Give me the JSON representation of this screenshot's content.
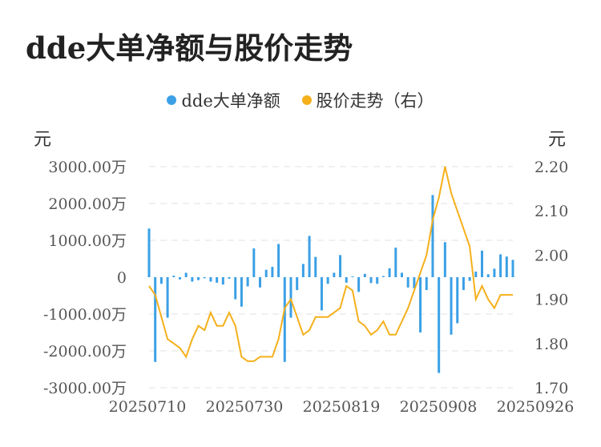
{
  "title": "dde大单净额与股价走势",
  "colors": {
    "bar": "#3ba0e6",
    "line": "#f5b01c",
    "grid": "#e6e6e6"
  },
  "chart_data": {
    "type": "bar+line",
    "legend": [
      "dde大单净额",
      "股价走势（右）"
    ],
    "legend_position": "top-center",
    "left_unit": "元",
    "right_unit": "元",
    "y_left_ticks": [
      "3000.00万",
      "2000.00万",
      "1000.00万",
      "0",
      "-1000.00万",
      "-2000.00万",
      "-3000.00万"
    ],
    "y_left_range": [
      -3000,
      3000
    ],
    "y_right_ticks": [
      "2.20",
      "2.10",
      "2.00",
      "1.90",
      "1.80",
      "1.70"
    ],
    "y_right_range": [
      1.7,
      2.2
    ],
    "x_tick_labels": [
      "20250710",
      "20250730",
      "20250819",
      "20250908",
      "20250926"
    ],
    "grid": true,
    "series": [
      {
        "name": "dde大单净额",
        "type": "bar",
        "values": [
          1320,
          -2300,
          -180,
          -1100,
          40,
          -60,
          120,
          -120,
          -80,
          -30,
          -120,
          -150,
          -200,
          -40,
          -600,
          -800,
          -250,
          780,
          -280,
          200,
          280,
          900,
          -2300,
          -1100,
          -350,
          360,
          1120,
          550,
          -900,
          -180,
          120,
          600,
          -150,
          20,
          -400,
          90,
          -160,
          -180,
          30,
          240,
          800,
          120,
          -280,
          -300,
          -1500,
          -350,
          2230,
          -2600,
          950,
          -1560,
          -1250,
          -350,
          -100,
          150,
          720,
          80,
          230,
          620,
          560,
          470
        ],
        "unit": "万"
      },
      {
        "name": "股价走势（右）",
        "type": "line",
        "values": [
          1.93,
          1.91,
          1.86,
          1.81,
          1.8,
          1.79,
          1.77,
          1.81,
          1.84,
          1.83,
          1.87,
          1.84,
          1.84,
          1.87,
          1.84,
          1.77,
          1.76,
          1.76,
          1.77,
          1.77,
          1.77,
          1.81,
          1.88,
          1.9,
          1.86,
          1.82,
          1.83,
          1.86,
          1.86,
          1.86,
          1.87,
          1.88,
          1.93,
          1.92,
          1.85,
          1.84,
          1.82,
          1.83,
          1.85,
          1.82,
          1.82,
          1.85,
          1.88,
          1.92,
          1.96,
          2.0,
          2.08,
          2.13,
          2.2,
          2.14,
          2.1,
          2.06,
          2.02,
          1.9,
          1.93,
          1.9,
          1.88,
          1.91,
          1.91,
          1.91
        ]
      }
    ]
  }
}
